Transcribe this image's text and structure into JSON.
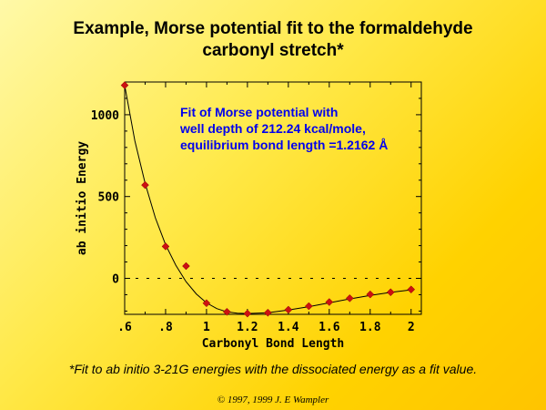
{
  "slide": {
    "title_line1": "Example, Morse potential fit to the formaldehyde",
    "title_line2": "carbonyl stretch*",
    "footnote": "*Fit to ab initio 3-21G energies with the dissociated energy as a fit value.",
    "copyright": "© 1997, 1999 J. E Wampler"
  },
  "chart_data": {
    "type": "scatter",
    "xlabel": "Carbonyl Bond Length",
    "ylabel": "ab initio Energy",
    "xlim": [
      0.6,
      2.05
    ],
    "ylim": [
      -220,
      1200
    ],
    "x_ticks": [
      ".6",
      ".8",
      "1",
      "1.2",
      "1.4",
      "1.6",
      "1.8",
      "2"
    ],
    "y_ticks": [
      "1000",
      "500",
      "0"
    ],
    "annotation_lines": [
      "Fit of Morse potential with",
      "well depth of 212.24 kcal/mole,",
      "equilibrium bond length =1.2162 Å"
    ],
    "colors": {
      "points": "#cc1111",
      "annotation": "#0000ee",
      "fit_line": "#000000"
    },
    "zero_line": "dashed",
    "series": [
      {
        "style": "points",
        "x": [
          0.6,
          0.7,
          0.8,
          0.9,
          1.0,
          1.1,
          1.2,
          1.3,
          1.4,
          1.5,
          1.6,
          1.7,
          1.8,
          1.9,
          2.0
        ],
        "y": [
          1180,
          570,
          195,
          75,
          -152,
          -205,
          -215,
          -210,
          -192,
          -170,
          -145,
          -122,
          -98,
          -85,
          -68
        ]
      },
      {
        "style": "line",
        "x": [
          0.6,
          0.65,
          0.7,
          0.75,
          0.8,
          0.85,
          0.9,
          0.95,
          1.0,
          1.05,
          1.1,
          1.15,
          1.2,
          1.3,
          1.4,
          1.5,
          1.6,
          1.7,
          1.8,
          1.9,
          2.0
        ],
        "y": [
          1180,
          840,
          580,
          370,
          205,
          80,
          -20,
          -95,
          -150,
          -185,
          -205,
          -213,
          -215,
          -210,
          -194,
          -173,
          -150,
          -126,
          -105,
          -86,
          -70
        ]
      }
    ]
  }
}
